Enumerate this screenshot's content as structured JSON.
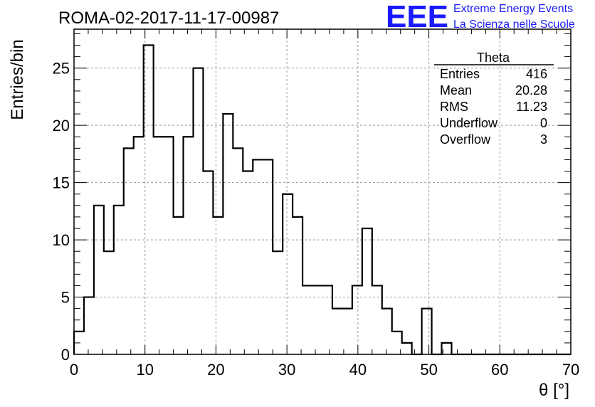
{
  "chart_data": {
    "type": "bar",
    "title": "ROMA-02-2017-11-17-00987",
    "xlabel": "θ [°]",
    "ylabel": "Entries/bin",
    "xlim": [
      0,
      70
    ],
    "ylim": [
      0,
      28.4
    ],
    "bin_width": 1.4,
    "bins_start": 0,
    "values": [
      2,
      5,
      13,
      9,
      13,
      18,
      19,
      27,
      19,
      19,
      12,
      19,
      25,
      16,
      12,
      21,
      18,
      16,
      17,
      17,
      9,
      14,
      12,
      6,
      6,
      6,
      4,
      4,
      6,
      11,
      6,
      4,
      2,
      1,
      0,
      4,
      0,
      1,
      0,
      0,
      0,
      0,
      0,
      0,
      0,
      0,
      0,
      0,
      0,
      0
    ],
    "xticks": [
      "0",
      "10",
      "20",
      "30",
      "40",
      "50",
      "60",
      "70"
    ],
    "yticks": [
      "0",
      "5",
      "10",
      "15",
      "20",
      "25"
    ],
    "grid": true,
    "legend": "none"
  },
  "stats": {
    "title": "Theta",
    "rows": [
      {
        "label": "Entries",
        "value": "416"
      },
      {
        "label": "Mean",
        "value": "20.28"
      },
      {
        "label": "RMS",
        "value": "11.23"
      },
      {
        "label": "Underflow",
        "value": "0"
      },
      {
        "label": "Overflow",
        "value": "3"
      }
    ]
  },
  "logo": {
    "mark": "EEE",
    "line1": "Extreme Energy Events",
    "line2": "La Scienza nelle Scuole",
    "color": "#1a1aff"
  }
}
